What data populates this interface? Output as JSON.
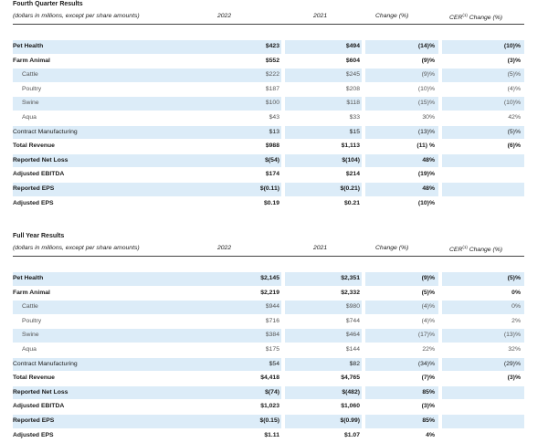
{
  "q4": {
    "title": "Fourth Quarter Results",
    "subtitle": "(dollars in millions, except per share amounts)",
    "col_2022": "2022",
    "col_2021": "2021",
    "col_change": "Change (%)",
    "col_cer_prefix": "CER",
    "col_cer_sup": "(1)",
    "col_cer_suffix": " Change (%)",
    "rows": [
      {
        "label": "Pet Health",
        "v2022": "$423",
        "v2021": "$494",
        "change": "(14)%",
        "cer": "(10)%"
      },
      {
        "label": "Farm Animal",
        "v2022": "$552",
        "v2021": "$604",
        "change": "(9)%",
        "cer": "(3)%"
      },
      {
        "label": "Cattle",
        "v2022": "$222",
        "v2021": "$245",
        "change": "(9)%",
        "cer": "(5)%"
      },
      {
        "label": "Poultry",
        "v2022": "$187",
        "v2021": "$208",
        "change": "(10)%",
        "cer": "(4)%"
      },
      {
        "label": "Swine",
        "v2022": "$100",
        "v2021": "$118",
        "change": "(15)%",
        "cer": "(10)%"
      },
      {
        "label": "Aqua",
        "v2022": "$43",
        "v2021": "$33",
        "change": "30%",
        "cer": "42%"
      },
      {
        "label": "Contract Manufacturing",
        "v2022": "$13",
        "v2021": "$15",
        "change": "(13)%",
        "cer": "(5)%"
      },
      {
        "label": "Total Revenue",
        "v2022": "$988",
        "v2021": "$1,113",
        "change": "(11) %",
        "cer": "(6)%"
      },
      {
        "label": "Reported Net Loss",
        "v2022": "$(54)",
        "v2021": "$(104)",
        "change": "48%",
        "cer": ""
      },
      {
        "label": "Adjusted EBITDA",
        "v2022": "$174",
        "v2021": "$214",
        "change": "(19)%",
        "cer": ""
      },
      {
        "label": "Reported EPS",
        "v2022": "$(0.11)",
        "v2021": "$(0.21)",
        "change": "48%",
        "cer": ""
      },
      {
        "label": "Adjusted EPS",
        "v2022": "$0.19",
        "v2021": "$0.21",
        "change": "(10)%",
        "cer": ""
      }
    ]
  },
  "fy": {
    "title": "Full Year Results",
    "subtitle": "(dollars in millions, except per share amounts)",
    "col_2022": "2022",
    "col_2021": "2021",
    "col_change": "Change (%)",
    "col_cer_prefix": "CER",
    "col_cer_sup": "(1)",
    "col_cer_suffix": " Change (%)",
    "rows": [
      {
        "label": "Pet Health",
        "v2022": "$2,145",
        "v2021": "$2,351",
        "change": "(9)%",
        "cer": "(5)%"
      },
      {
        "label": "Farm Animal",
        "v2022": "$2,219",
        "v2021": "$2,332",
        "change": "(5)%",
        "cer": "0%"
      },
      {
        "label": "Cattle",
        "v2022": "$944",
        "v2021": "$980",
        "change": "(4)%",
        "cer": "0%"
      },
      {
        "label": "Poultry",
        "v2022": "$716",
        "v2021": "$744",
        "change": "(4)%",
        "cer": "2%"
      },
      {
        "label": "Swine",
        "v2022": "$384",
        "v2021": "$464",
        "change": "(17)%",
        "cer": "(13)%"
      },
      {
        "label": "Aqua",
        "v2022": "$175",
        "v2021": "$144",
        "change": "22%",
        "cer": "32%"
      },
      {
        "label": "Contract Manufacturing",
        "v2022": "$54",
        "v2021": "$82",
        "change": "(34)%",
        "cer": "(29)%"
      },
      {
        "label": "Total Revenue",
        "v2022": "$4,418",
        "v2021": "$4,765",
        "change": "(7)%",
        "cer": "(3)%"
      },
      {
        "label": "Reported Net Loss",
        "v2022": "$(74)",
        "v2021": "$(482)",
        "change": "85%",
        "cer": ""
      },
      {
        "label": "Adjusted EBITDA",
        "v2022": "$1,023",
        "v2021": "$1,060",
        "change": "(3)%",
        "cer": ""
      },
      {
        "label": "Reported EPS",
        "v2022": "$(0.15)",
        "v2021": "$(0.99)",
        "change": "85%",
        "cer": ""
      },
      {
        "label": "Adjusted EPS",
        "v2022": "$1.11",
        "v2021": "$1.07",
        "change": "4%",
        "cer": ""
      }
    ]
  }
}
